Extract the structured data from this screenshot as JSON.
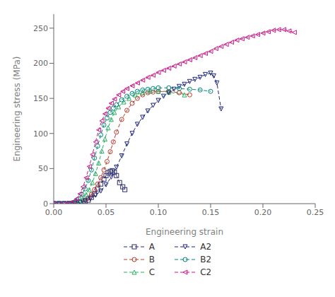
{
  "chart_data": {
    "type": "line",
    "xlabel": "Engineering strain",
    "ylabel": "Engineering stress (MPa)",
    "xlim": [
      0.0,
      0.25
    ],
    "ylim": [
      0,
      270
    ],
    "xticks": [
      {
        "value": 0.0,
        "label": "0.00"
      },
      0.05,
      {
        "value": 0.1,
        "label": "0.10"
      },
      0.15,
      {
        "value": 0.2,
        "label": "0.20"
      },
      0.25
    ],
    "yticks": [
      0,
      50,
      100,
      150,
      200,
      250
    ],
    "grid": false,
    "series": [
      {
        "name": "A",
        "color": "#2b2b6b",
        "marker": "square",
        "line_style": "dashed",
        "x": [
          0.0,
          0.005,
          0.01,
          0.015,
          0.02,
          0.025,
          0.03,
          0.033,
          0.036,
          0.039,
          0.042,
          0.045,
          0.048,
          0.05,
          0.052,
          0.054,
          0.056,
          0.058,
          0.06,
          0.063,
          0.066,
          0.068
        ],
        "values": [
          0,
          0,
          0,
          0.3,
          0.8,
          1.5,
          3,
          5,
          9,
          14,
          21,
          28,
          35,
          40,
          44,
          46,
          47,
          45,
          40,
          30,
          24,
          20
        ]
      },
      {
        "name": "B",
        "color": "#c0392b",
        "marker": "circle",
        "line_style": "dashed",
        "x": [
          0.0,
          0.005,
          0.01,
          0.015,
          0.02,
          0.025,
          0.03,
          0.033,
          0.036,
          0.039,
          0.042,
          0.045,
          0.048,
          0.051,
          0.054,
          0.057,
          0.06,
          0.065,
          0.07,
          0.075,
          0.08,
          0.085,
          0.09,
          0.095,
          0.1,
          0.11,
          0.12,
          0.13
        ],
        "values": [
          0,
          0,
          0,
          0.2,
          0.8,
          2,
          5,
          8,
          13,
          20,
          28,
          37,
          48,
          60,
          74,
          88,
          102,
          120,
          133,
          143,
          150,
          155,
          158,
          159,
          160,
          160,
          158,
          155
        ]
      },
      {
        "name": "C",
        "color": "#27ae60",
        "marker": "triangle-up",
        "line_style": "dashed",
        "x": [
          0.0,
          0.005,
          0.01,
          0.015,
          0.02,
          0.025,
          0.028,
          0.031,
          0.034,
          0.037,
          0.04,
          0.043,
          0.046,
          0.049,
          0.052,
          0.055,
          0.058,
          0.062,
          0.067,
          0.072,
          0.078,
          0.085,
          0.092,
          0.1,
          0.11,
          0.125
        ],
        "values": [
          0,
          0,
          0,
          0.3,
          1.2,
          3.5,
          7,
          13,
          20,
          30,
          43,
          58,
          75,
          92,
          108,
          120,
          130,
          138,
          145,
          150,
          155,
          158,
          160,
          160,
          159,
          155
        ]
      },
      {
        "name": "A2",
        "color": "#1a237e",
        "marker": "triangle-down",
        "line_style": "dashed",
        "x": [
          0.0,
          0.005,
          0.01,
          0.015,
          0.02,
          0.025,
          0.03,
          0.035,
          0.04,
          0.045,
          0.05,
          0.055,
          0.06,
          0.065,
          0.07,
          0.075,
          0.08,
          0.085,
          0.09,
          0.095,
          0.1,
          0.105,
          0.11,
          0.115,
          0.12,
          0.125,
          0.13,
          0.135,
          0.14,
          0.145,
          0.15,
          0.153,
          0.156,
          0.16
        ],
        "values": [
          0,
          0,
          0,
          0.3,
          0.8,
          2,
          4,
          7,
          12,
          18,
          27,
          38,
          52,
          68,
          85,
          100,
          113,
          123,
          132,
          140,
          147,
          153,
          158,
          163,
          167,
          170,
          174,
          177,
          180,
          184,
          186,
          182,
          172,
          135
        ]
      },
      {
        "name": "B2",
        "color": "#00897b",
        "marker": "circle",
        "line_style": "dashed",
        "x": [
          0.0,
          0.005,
          0.01,
          0.015,
          0.018,
          0.021,
          0.024,
          0.027,
          0.03,
          0.033,
          0.036,
          0.039,
          0.042,
          0.045,
          0.048,
          0.051,
          0.054,
          0.057,
          0.06,
          0.065,
          0.07,
          0.075,
          0.08,
          0.085,
          0.09,
          0.095,
          0.1,
          0.11,
          0.12,
          0.13,
          0.14,
          0.15
        ],
        "values": [
          0,
          0,
          0,
          0.5,
          1.5,
          3.5,
          7,
          13,
          21,
          33,
          48,
          65,
          82,
          98,
          112,
          122,
          130,
          136,
          141,
          148,
          153,
          157,
          160,
          162,
          163,
          164,
          165,
          165,
          164,
          163,
          162,
          160
        ]
      },
      {
        "name": "C2",
        "color": "#c71585",
        "marker": "triangle-left",
        "line_style": "dashed",
        "x": [
          0.0,
          0.005,
          0.01,
          0.013,
          0.016,
          0.019,
          0.022,
          0.025,
          0.028,
          0.031,
          0.034,
          0.037,
          0.04,
          0.043,
          0.046,
          0.049,
          0.052,
          0.055,
          0.058,
          0.062,
          0.066,
          0.07,
          0.075,
          0.08,
          0.085,
          0.09,
          0.095,
          0.1,
          0.105,
          0.11,
          0.115,
          0.12,
          0.125,
          0.13,
          0.135,
          0.14,
          0.145,
          0.15,
          0.155,
          0.16,
          0.165,
          0.17,
          0.175,
          0.18,
          0.185,
          0.19,
          0.195,
          0.2,
          0.205,
          0.21,
          0.215,
          0.22,
          0.225,
          0.23
        ],
        "values": [
          0,
          0,
          0,
          0.3,
          1,
          3,
          7,
          14,
          24,
          37,
          53,
          70,
          88,
          105,
          118,
          128,
          136,
          143,
          149,
          155,
          160,
          164,
          168,
          172,
          176,
          180,
          183,
          187,
          190,
          193,
          196,
          199,
          202,
          205,
          208,
          211,
          214,
          217,
          221,
          224,
          227,
          230,
          233,
          235,
          237,
          239,
          241,
          243,
          245,
          247,
          248,
          248,
          246,
          244
        ]
      }
    ]
  }
}
